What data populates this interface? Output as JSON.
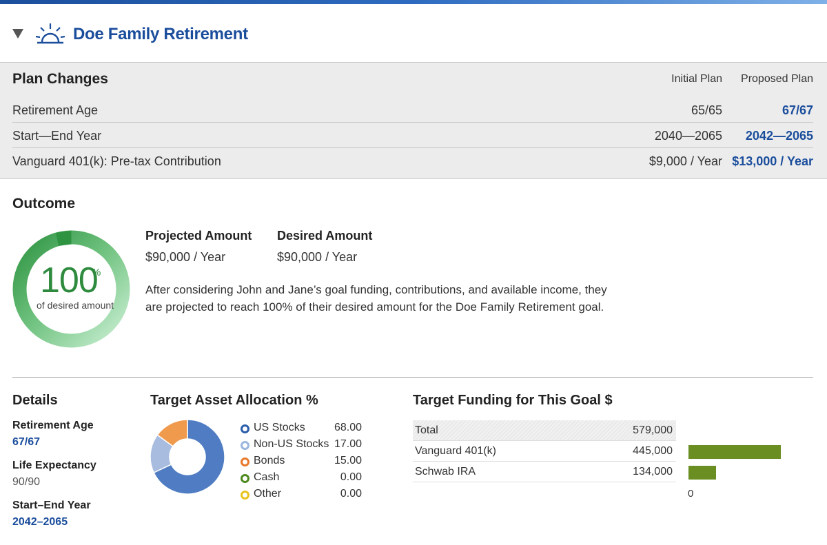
{
  "goal": {
    "title": "Doe Family Retirement",
    "icon": "sunrise-icon"
  },
  "plan_changes": {
    "title": "Plan Changes",
    "col_initial": "Initial Plan",
    "col_proposed": "Proposed Plan",
    "rows": [
      {
        "label": "Retirement Age",
        "initial": "65/65",
        "proposed": "67/67"
      },
      {
        "label": "Start—End Year",
        "initial": "2040—2065",
        "proposed": "2042—2065"
      },
      {
        "label": "Vanguard 401(k): Pre-tax Contribution",
        "initial": "$9,000 / Year",
        "proposed": "$13,000 / Year"
      }
    ]
  },
  "outcome": {
    "title": "Outcome",
    "percent": "100",
    "percent_sign": "%",
    "percent_caption": "of desired amount",
    "projected_label": "Projected Amount",
    "projected_value": "$90,000 / Year",
    "desired_label": "Desired Amount",
    "desired_value": "$90,000 / Year",
    "summary": "After considering John and Jane’s goal funding, contributions, and available income, they are projected to reach 100% of their desired amount for the Doe Family Retirement goal."
  },
  "details": {
    "title": "Details",
    "items": [
      {
        "label": "Retirement Age",
        "value": "67/67"
      },
      {
        "label": "Life Expectancy",
        "value": "90/90"
      },
      {
        "label": "Start–End Year",
        "value": "2042–2065"
      }
    ]
  },
  "allocation": {
    "title": "Target Asset Allocation %",
    "items": [
      {
        "name": "US Stocks",
        "value": "68.00",
        "color": "#2a5caa"
      },
      {
        "name": "Non-US Stocks",
        "value": "17.00",
        "color": "#9bb7de"
      },
      {
        "name": "Bonds",
        "value": "15.00",
        "color": "#e8782a"
      },
      {
        "name": "Cash",
        "value": "0.00",
        "color": "#4d8a1e"
      },
      {
        "name": "Other",
        "value": "0.00",
        "color": "#e8c31c"
      }
    ]
  },
  "funding": {
    "title": "Target Funding for This Goal $",
    "rows": [
      {
        "name": "Total",
        "value": "579,000"
      },
      {
        "name": "Vanguard 401(k)",
        "value": "445,000"
      },
      {
        "name": "Schwab IRA",
        "value": "134,000"
      }
    ],
    "axis_label": "0"
  },
  "chart_data": [
    {
      "type": "pie",
      "title": "Target Asset Allocation %",
      "categories": [
        "US Stocks",
        "Non-US Stocks",
        "Bonds",
        "Cash",
        "Other"
      ],
      "values": [
        68.0,
        17.0,
        15.0,
        0.0,
        0.0
      ],
      "colors": [
        "#4f7cc2",
        "#a7bcde",
        "#f09a4e",
        "#4d8a1e",
        "#e8c31c"
      ]
    },
    {
      "type": "bar",
      "title": "Target Funding for This Goal $",
      "categories": [
        "Vanguard 401(k)",
        "Schwab IRA"
      ],
      "values": [
        445000,
        134000
      ],
      "color": "#6b8e23",
      "xlim": [
        0,
        445000
      ]
    }
  ]
}
